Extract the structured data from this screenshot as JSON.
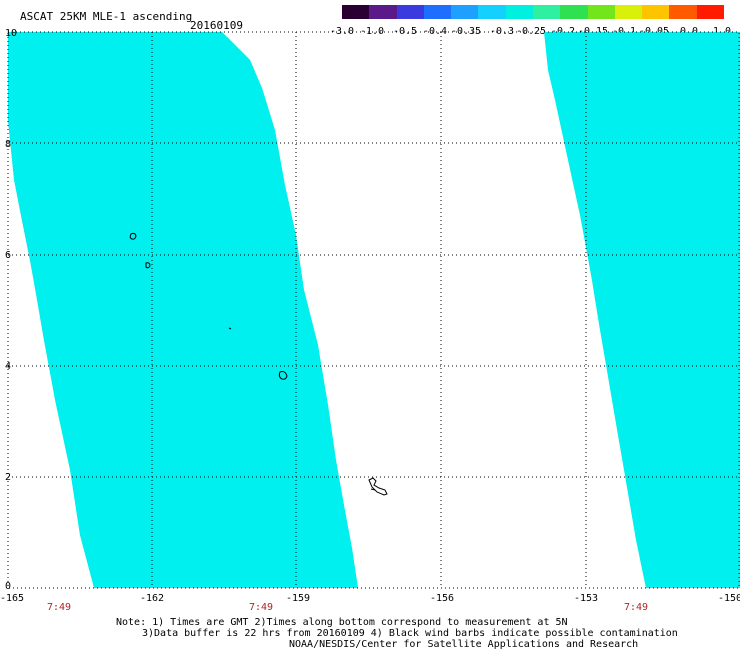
{
  "header": {
    "title": "ASCAT 25KM MLE-1 ascending",
    "date": "20160109"
  },
  "colorbar": {
    "labels": [
      "-3.0",
      "-1.0",
      "-0.5",
      "-0.4",
      "-0.35",
      "-0.3",
      "-0.25",
      "-0.2",
      "-0.15",
      "-0.1",
      "-0.05",
      "0.0",
      "1.0"
    ],
    "colors": [
      "#2a0033",
      "#5a1a8a",
      "#3a3adf",
      "#1f6fff",
      "#1ea0ff",
      "#14d0ff",
      "#00f0e0",
      "#2ef0a0",
      "#2fe050",
      "#72e61a",
      "#d8f00a",
      "#ffc400",
      "#ff5a00",
      "#ff1a00"
    ]
  },
  "axes": {
    "y_labels": [
      "10",
      "8",
      "6",
      "4",
      "2",
      "0"
    ],
    "x_labels": [
      "-165",
      "-162",
      "-159",
      "-156",
      "-153",
      "-150"
    ],
    "time_labels": [
      "7:49",
      "7:49",
      "7:49"
    ]
  },
  "notes": {
    "line1": "Note: 1) Times are GMT 2)Times along bottom correspond to measurement at 5N",
    "line2": "3)Data buffer is 22 hrs from 20160109 4) Black wind barbs indicate possible contamination",
    "line3": "NOAA/NESDIS/Center for Satellite Applications and Research"
  },
  "palette": {
    "deep_blue": "#1a3ee0",
    "blue": "#2f6fff",
    "light_blue": "#3aa0ff",
    "cyan": "#00f0f0",
    "aqua": "#00f5c8",
    "green": "#2fe050",
    "lime": "#8ef020",
    "yellow": "#f5f000",
    "orange": "#ffa000",
    "dark_orange": "#ff7a00"
  }
}
